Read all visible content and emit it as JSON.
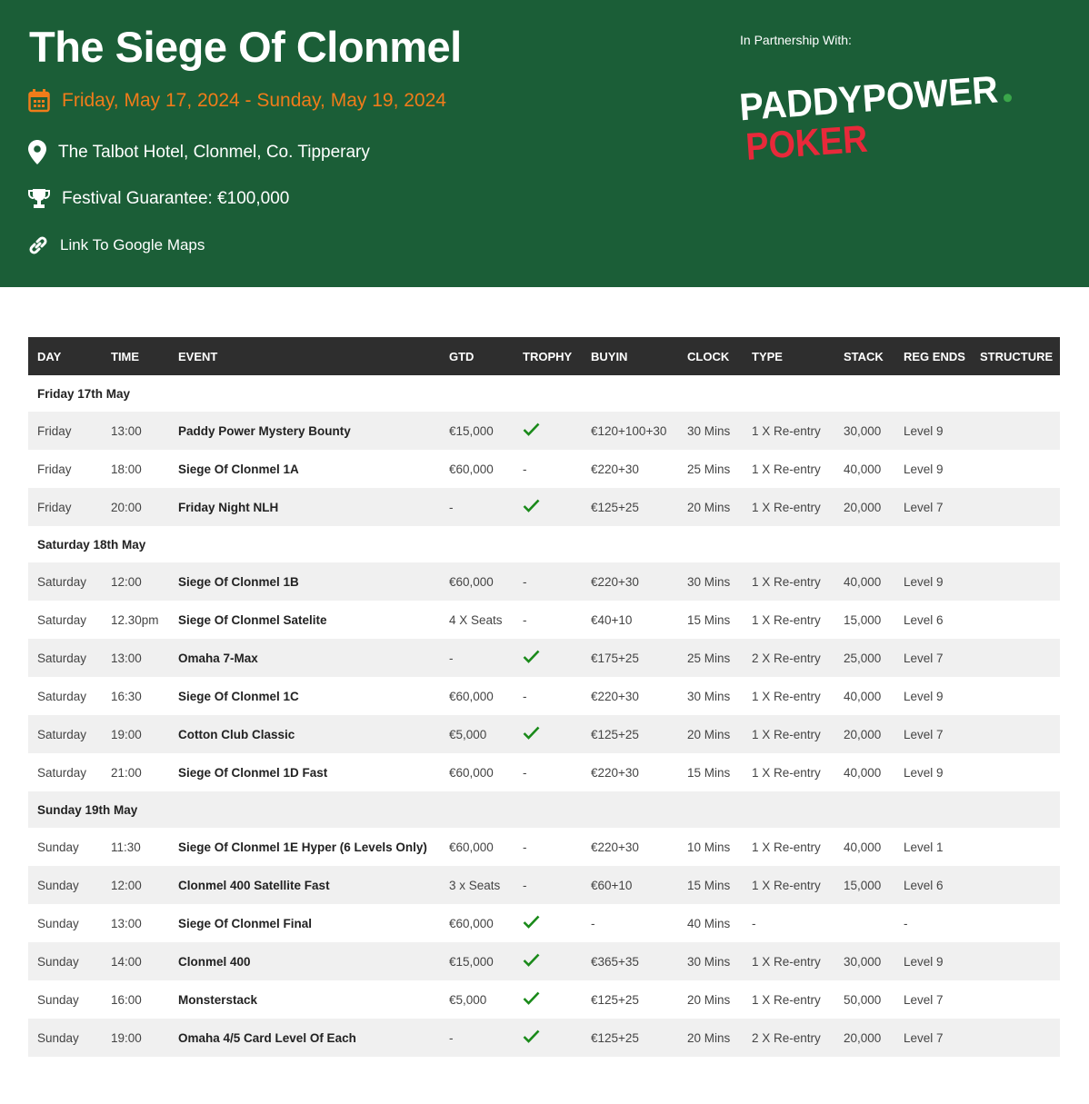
{
  "header": {
    "title": "The Siege Of Clonmel",
    "dates": "Friday, May 17, 2024 - Sunday, May 19, 2024",
    "venue": "The Talbot Hotel, Clonmel, Co. Tipperary",
    "guarantee": "Festival Guarantee: €100,000",
    "maps_link": "Link To Google Maps",
    "partner_label": "In Partnership With:",
    "logo_text_1": "PADDYPOWER",
    "logo_text_2": "POKER",
    "colors": {
      "background": "#1b5e37",
      "date": "#f07c1a",
      "logo_red": "#e8293a",
      "logo_dot": "#3aa64a",
      "check": "#1a8a1a"
    }
  },
  "table": {
    "columns": [
      "DAY",
      "TIME",
      "EVENT",
      "GTD",
      "TROPHY",
      "BUYIN",
      "CLOCK",
      "TYPE",
      "STACK",
      "REG ENDS",
      "STRUCTURE"
    ],
    "groups": [
      {
        "label": "Friday 17th May",
        "rows": [
          [
            "Friday",
            "13:00",
            "Paddy Power Mystery Bounty",
            "€15,000",
            "check",
            "€120+100+30",
            "30 Mins",
            "1 X Re-entry",
            "30,000",
            "Level 9",
            ""
          ],
          [
            "Friday",
            "18:00",
            "Siege Of Clonmel 1A",
            "€60,000",
            "-",
            "€220+30",
            "25 Mins",
            "1 X Re-entry",
            "40,000",
            "Level 9",
            ""
          ],
          [
            "Friday",
            "20:00",
            "Friday Night NLH",
            "-",
            "check",
            "€125+25",
            "20 Mins",
            "1 X Re-entry",
            "20,000",
            "Level 7",
            ""
          ]
        ]
      },
      {
        "label": "Saturday 18th May",
        "rows": [
          [
            "Saturday",
            "12:00",
            "Siege Of Clonmel 1B",
            "€60,000",
            "-",
            "€220+30",
            "30 Mins",
            "1 X Re-entry",
            "40,000",
            "Level 9",
            ""
          ],
          [
            "Saturday",
            "12.30pm",
            "Siege Of Clonmel Satelite",
            "4 X Seats",
            "-",
            "€40+10",
            "15 Mins",
            "1 X Re-entry",
            "15,000",
            "Level 6",
            ""
          ],
          [
            "Saturday",
            "13:00",
            "Omaha 7-Max",
            "-",
            "check",
            "€175+25",
            "25 Mins",
            "2 X Re-entry",
            "25,000",
            "Level 7",
            ""
          ],
          [
            "Saturday",
            "16:30",
            "Siege Of Clonmel 1C",
            "€60,000",
            "-",
            "€220+30",
            "30 Mins",
            "1 X Re-entry",
            "40,000",
            "Level 9",
            ""
          ],
          [
            "Saturday",
            "19:00",
            "Cotton Club Classic",
            "€5,000",
            "check",
            "€125+25",
            "20 Mins",
            "1 X Re-entry",
            "20,000",
            "Level 7",
            ""
          ],
          [
            "Saturday",
            "21:00",
            "Siege Of Clonmel 1D Fast",
            "€60,000",
            "-",
            "€220+30",
            "15 Mins",
            "1 X Re-entry",
            "40,000",
            "Level 9",
            ""
          ]
        ]
      },
      {
        "label": "Sunday 19th May",
        "rows": [
          [
            "Sunday",
            "11:30",
            "Siege Of Clonmel 1E Hyper (6 Levels Only)",
            "€60,000",
            "-",
            "€220+30",
            "10 Mins",
            "1 X Re-entry",
            "40,000",
            "Level 1",
            ""
          ],
          [
            "Sunday",
            "12:00",
            "Clonmel 400 Satellite Fast",
            "3 x Seats",
            "-",
            "€60+10",
            "15 Mins",
            "1 X Re-entry",
            "15,000",
            "Level 6",
            ""
          ],
          [
            "Sunday",
            "13:00",
            "Siege Of Clonmel Final",
            "€60,000",
            "check",
            "-",
            "40 Mins",
            "-",
            "",
            "-",
            ""
          ],
          [
            "Sunday",
            "14:00",
            "Clonmel 400",
            "€15,000",
            "check",
            "€365+35",
            "30 Mins",
            "1 X Re-entry",
            "30,000",
            "Level 9",
            ""
          ],
          [
            "Sunday",
            "16:00",
            "Monsterstack",
            "€5,000",
            "check",
            "€125+25",
            "20 Mins",
            "1 X Re-entry",
            "50,000",
            "Level 7",
            ""
          ],
          [
            "Sunday",
            "19:00",
            "Omaha 4/5 Card Level Of Each",
            "-",
            "check",
            "€125+25",
            "20 Mins",
            "2 X Re-entry",
            "20,000",
            "Level 7",
            ""
          ]
        ]
      }
    ]
  }
}
